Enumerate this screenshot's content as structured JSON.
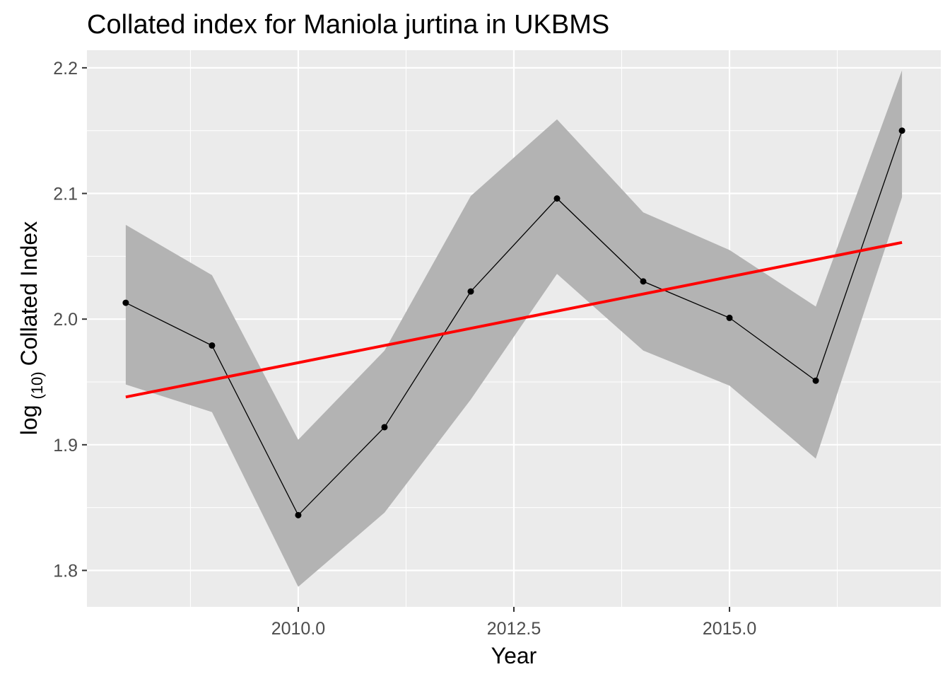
{
  "chart_data": {
    "type": "line",
    "title": "Collated index for Maniola jurtina in UKBMS",
    "xlabel": "Year",
    "ylabel": {
      "prefix": "log",
      "subscript": "(10)",
      "suffix": "Collated Index"
    },
    "x": [
      2008,
      2009,
      2010,
      2011,
      2012,
      2013,
      2014,
      2015,
      2016,
      2017
    ],
    "series": [
      {
        "values": [
          2.013,
          1.979,
          1.844,
          1.914,
          2.022,
          2.096,
          2.03,
          2.001,
          1.951,
          2.15
        ]
      }
    ],
    "ribbon": {
      "lower": [
        1.948,
        1.926,
        1.787,
        1.846,
        1.936,
        2.036,
        1.975,
        1.947,
        1.889,
        2.097
      ],
      "upper": [
        2.075,
        2.035,
        1.904,
        1.975,
        2.098,
        2.159,
        2.085,
        2.055,
        2.01,
        2.198
      ]
    },
    "trend": {
      "x": [
        2008,
        2017
      ],
      "values": [
        1.938,
        2.061
      ],
      "color": "#ff0000"
    },
    "xticks": [
      {
        "value": 2010,
        "label": "2010.0"
      },
      {
        "value": 2012.5,
        "label": "2012.5"
      },
      {
        "value": 2015,
        "label": "2015.0"
      }
    ],
    "yticks": [
      {
        "value": 1.8,
        "label": "1.8"
      },
      {
        "value": 1.9,
        "label": "1.9"
      },
      {
        "value": 2.0,
        "label": "2.0"
      },
      {
        "value": 2.1,
        "label": "2.1"
      },
      {
        "value": 2.2,
        "label": "2.2"
      }
    ],
    "xlim": [
      2007.55,
      2017.45
    ],
    "ylim": [
      1.771,
      2.214
    ],
    "grid": true,
    "colors": {
      "panel": "#ebebeb",
      "grid": "#ffffff",
      "ribbon": "#b3b3b3",
      "line": "#000000",
      "trend": "#ff0000"
    }
  }
}
